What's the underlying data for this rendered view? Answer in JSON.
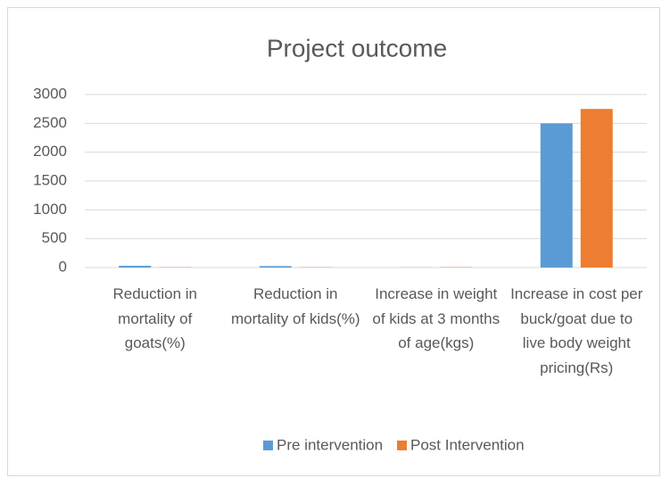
{
  "chart_data": {
    "type": "bar",
    "title": "Project outcome",
    "categories": [
      "Reduction in mortality of goats(%)",
      "Reduction in mortality of kids(%)",
      "Increase in weight of kids at 3 months of age(kgs)",
      "Increase in cost per buck/goat due to live body weight pricing(Rs)"
    ],
    "series": [
      {
        "name": "Pre intervention",
        "color": "#5b9bd5",
        "values": [
          30,
          25,
          3,
          2500
        ]
      },
      {
        "name": "Post Intervention",
        "color": "#ed7d31",
        "values": [
          5,
          5,
          6,
          2750
        ]
      }
    ],
    "ylim": [
      0,
      3000
    ],
    "yticks": [
      0,
      500,
      1000,
      1500,
      2000,
      2500,
      3000
    ],
    "grid": true,
    "legend": "bottom"
  }
}
